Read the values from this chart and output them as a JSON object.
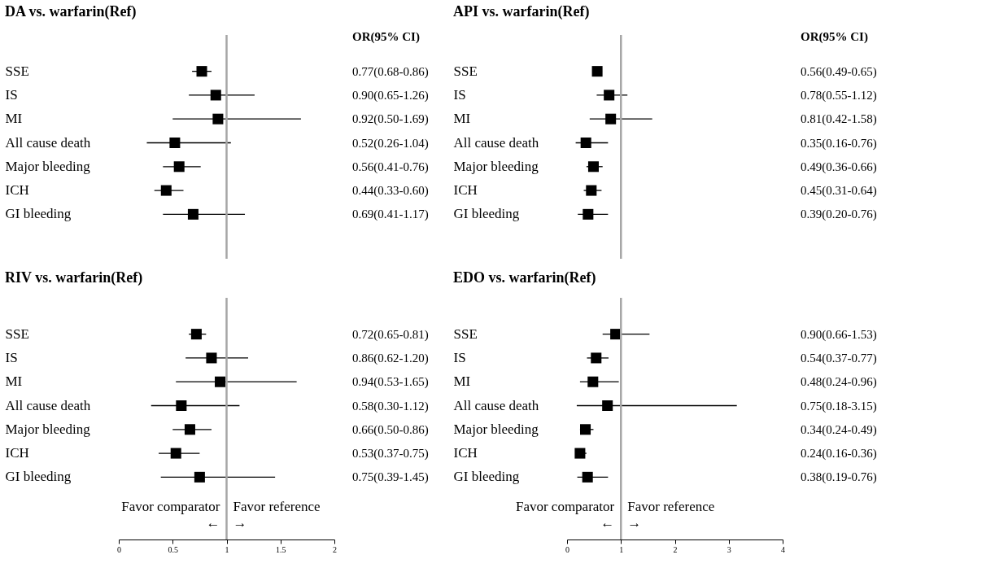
{
  "chart_data": [
    {
      "type": "scatter",
      "title": "DA vs. warfarin(Ref)",
      "orientation": "horizontal",
      "categories": [
        "SSE",
        "IS",
        "MI",
        "All cause death",
        "Major bleeding",
        "ICH",
        "GI bleeding"
      ],
      "xlim": [
        0,
        2
      ],
      "xticks": [
        0,
        0.5,
        1,
        1.5,
        2
      ],
      "tick_labels": "y",
      "marker": "square",
      "ref_lines": [
        {
          "axis": "x",
          "value": 1,
          "color": "#a6a6a6"
        }
      ],
      "annotations": [
        "OR(95% CI)"
      ],
      "series": [
        {
          "color": "#000000",
          "values": [
            0.77,
            0.9,
            0.92,
            0.52,
            0.56,
            0.44,
            0.69
          ],
          "errors": [
            [
              0.68,
              0.86
            ],
            [
              0.65,
              1.26
            ],
            [
              0.5,
              1.69
            ],
            [
              0.26,
              1.04
            ],
            [
              0.41,
              0.76
            ],
            [
              0.33,
              0.6
            ],
            [
              0.41,
              1.17
            ]
          ],
          "value_labels": [
            "0.77(0.68-0.86)",
            "0.90(0.65-1.26)",
            "0.92(0.50-1.69)",
            "0.52(0.26-1.04)",
            "0.56(0.41-0.76)",
            "0.44(0.33-0.60)",
            "0.69(0.41-1.17)"
          ]
        }
      ]
    },
    {
      "type": "scatter",
      "title": "API vs. warfarin(Ref)",
      "orientation": "horizontal",
      "categories": [
        "SSE",
        "IS",
        "MI",
        "All cause death",
        "Major bleeding",
        "ICH",
        "GI bleeding"
      ],
      "xlim": [
        0,
        4
      ],
      "xticks": [
        0,
        1,
        2,
        3,
        4
      ],
      "tick_labels": "y",
      "marker": "square",
      "ref_lines": [
        {
          "axis": "x",
          "value": 1,
          "color": "#a6a6a6"
        }
      ],
      "annotations": [
        "OR(95% CI)"
      ],
      "series": [
        {
          "color": "#000000",
          "values": [
            0.56,
            0.78,
            0.81,
            0.35,
            0.49,
            0.45,
            0.39
          ],
          "errors": [
            [
              0.49,
              0.65
            ],
            [
              0.55,
              1.12
            ],
            [
              0.42,
              1.58
            ],
            [
              0.16,
              0.76
            ],
            [
              0.36,
              0.66
            ],
            [
              0.31,
              0.64
            ],
            [
              0.2,
              0.76
            ]
          ],
          "value_labels": [
            "0.56(0.49-0.65)",
            "0.78(0.55-1.12)",
            "0.81(0.42-1.58)",
            "0.35(0.16-0.76)",
            "0.49(0.36-0.66)",
            "0.45(0.31-0.64)",
            "0.39(0.20-0.76)"
          ]
        }
      ]
    },
    {
      "type": "scatter",
      "title": "RIV vs. warfarin(Ref)",
      "orientation": "horizontal",
      "categories": [
        "SSE",
        "IS",
        "MI",
        "All cause death",
        "Major bleeding",
        "ICH",
        "GI bleeding"
      ],
      "xlim": [
        0,
        2
      ],
      "xticks": [
        0,
        0.5,
        1,
        1.5,
        2
      ],
      "marker": "square",
      "ref_lines": [
        {
          "axis": "x",
          "value": 1,
          "color": "#a6a6a6"
        }
      ],
      "annotations": [
        "Favor comparator",
        "Favor reference",
        "←",
        "→"
      ],
      "series": [
        {
          "color": "#000000",
          "values": [
            0.72,
            0.86,
            0.94,
            0.58,
            0.66,
            0.53,
            0.75
          ],
          "errors": [
            [
              0.65,
              0.81
            ],
            [
              0.62,
              1.2
            ],
            [
              0.53,
              1.65
            ],
            [
              0.3,
              1.12
            ],
            [
              0.5,
              0.86
            ],
            [
              0.37,
              0.75
            ],
            [
              0.39,
              1.45
            ]
          ],
          "value_labels": [
            "0.72(0.65-0.81)",
            "0.86(0.62-1.20)",
            "0.94(0.53-1.65)",
            "0.58(0.30-1.12)",
            "0.66(0.50-0.86)",
            "0.53(0.37-0.75)",
            "0.75(0.39-1.45)"
          ]
        }
      ]
    },
    {
      "type": "scatter",
      "title": "EDO vs. warfarin(Ref)",
      "orientation": "horizontal",
      "categories": [
        "SSE",
        "IS",
        "MI",
        "All cause death",
        "Major bleeding",
        "ICH",
        "GI bleeding"
      ],
      "xlim": [
        0,
        4
      ],
      "xticks": [
        0,
        1,
        2,
        3,
        4
      ],
      "marker": "square",
      "ref_lines": [
        {
          "axis": "x",
          "value": 1,
          "color": "#a6a6a6"
        }
      ],
      "annotations": [
        "Favor comparator",
        "Favor reference",
        "←",
        "→"
      ],
      "series": [
        {
          "color": "#000000",
          "values": [
            0.9,
            0.54,
            0.48,
            0.75,
            0.34,
            0.24,
            0.38
          ],
          "errors": [
            [
              0.66,
              1.53
            ],
            [
              0.37,
              0.77
            ],
            [
              0.24,
              0.96
            ],
            [
              0.18,
              3.15
            ],
            [
              0.24,
              0.49
            ],
            [
              0.16,
              0.36
            ],
            [
              0.19,
              0.76
            ]
          ],
          "value_labels": [
            "0.90(0.66-1.53)",
            "0.54(0.37-0.77)",
            "0.48(0.24-0.96)",
            "0.75(0.18-3.15)",
            "0.34(0.24-0.49)",
            "0.24(0.16-0.36)",
            "0.38(0.19-0.76)"
          ]
        }
      ]
    }
  ]
}
